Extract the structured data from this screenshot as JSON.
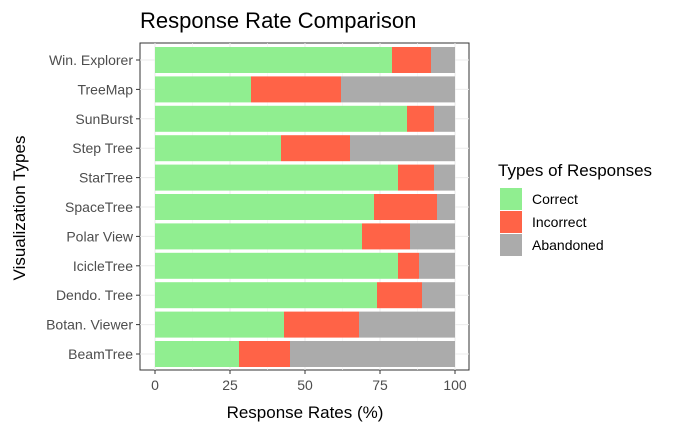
{
  "chart_data": {
    "type": "bar",
    "orientation": "horizontal",
    "stacked": true,
    "title": "Response Rate Comparison",
    "xlabel": "Response Rates (%)",
    "ylabel": "Visualization Types",
    "xlim": [
      0,
      100
    ],
    "xticks": [
      "0",
      "25",
      "50",
      "75",
      "100"
    ],
    "grid": true,
    "legend_title": "Types of Responses",
    "legend_position": "right",
    "categories": [
      "Win. Explorer",
      "TreeMap",
      "SunBurst",
      "Step Tree",
      "StarTree",
      "SpaceTree",
      "Polar View",
      "IcicleTree",
      "Dendo. Tree",
      "Botan. Viewer",
      "BeamTree"
    ],
    "series": [
      {
        "name": "Correct",
        "color": "#90EE90",
        "values": [
          79,
          32,
          84,
          42,
          81,
          73,
          69,
          81,
          74,
          43,
          28
        ]
      },
      {
        "name": "Incorrect",
        "color": "#FF6347",
        "values": [
          13,
          30,
          9,
          23,
          12,
          21,
          16,
          7,
          15,
          25,
          17
        ]
      },
      {
        "name": "Abandoned",
        "color": "#ABABAB",
        "values": [
          8,
          38,
          7,
          35,
          7,
          6,
          15,
          12,
          11,
          32,
          55
        ]
      }
    ]
  }
}
